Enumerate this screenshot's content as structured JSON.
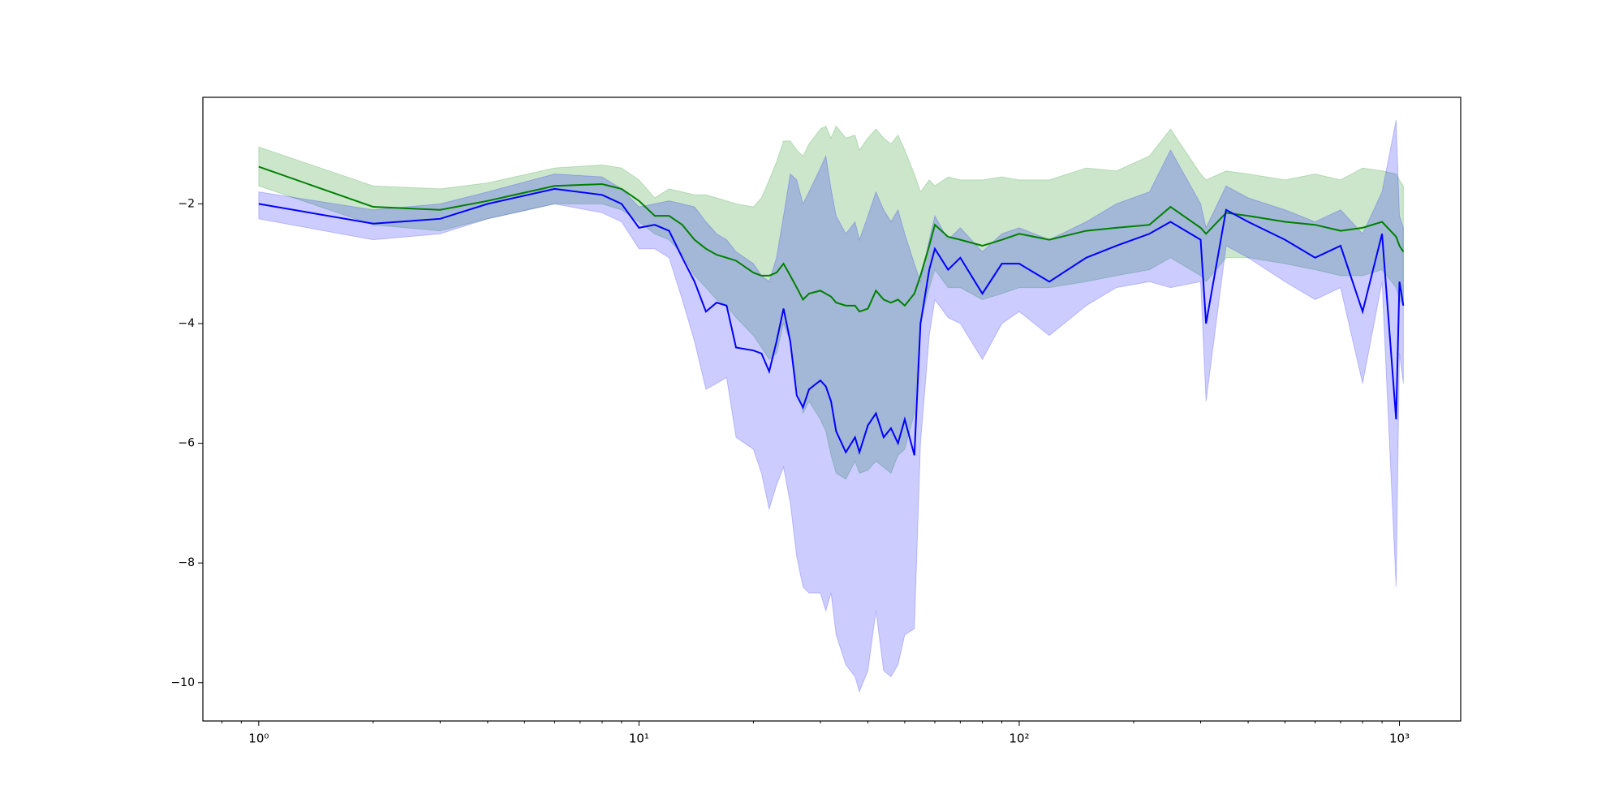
{
  "chart_data": {
    "type": "line",
    "log_x": true,
    "x": [
      1,
      2,
      3,
      4,
      6,
      8,
      9,
      10,
      11,
      12,
      13,
      14,
      15,
      16,
      17,
      18,
      20,
      21,
      22,
      23,
      24,
      25,
      26,
      27,
      28,
      30,
      31,
      32,
      33,
      35,
      37,
      38,
      40,
      42,
      44,
      46,
      48,
      50,
      53,
      55,
      58,
      60,
      65,
      70,
      80,
      90,
      100,
      120,
      150,
      180,
      220,
      250,
      300,
      310,
      350,
      400,
      500,
      600,
      700,
      800,
      900,
      980,
      1000,
      1024
    ],
    "series": [
      {
        "color": "#008000",
        "values": [
          -1.38,
          -2.05,
          -2.1,
          -1.95,
          -1.7,
          -1.67,
          -1.75,
          -1.95,
          -2.2,
          -2.2,
          -2.35,
          -2.6,
          -2.75,
          -2.85,
          -2.9,
          -2.95,
          -3.15,
          -3.2,
          -3.2,
          -3.15,
          -3.0,
          -3.2,
          -3.4,
          -3.6,
          -3.5,
          -3.45,
          -3.5,
          -3.55,
          -3.65,
          -3.7,
          -3.7,
          -3.8,
          -3.75,
          -3.45,
          -3.6,
          -3.65,
          -3.6,
          -3.7,
          -3.5,
          -3.2,
          -2.7,
          -2.35,
          -2.55,
          -2.6,
          -2.7,
          -2.6,
          -2.5,
          -2.6,
          -2.45,
          -2.4,
          -2.35,
          -2.05,
          -2.4,
          -2.5,
          -2.15,
          -2.2,
          -2.3,
          -2.35,
          -2.45,
          -2.4,
          -2.3,
          -2.55,
          -2.7,
          -2.8
        ],
        "upper": [
          -1.05,
          -1.7,
          -1.75,
          -1.65,
          -1.4,
          -1.35,
          -1.4,
          -1.6,
          -1.9,
          -1.75,
          -1.8,
          -1.85,
          -1.85,
          -1.9,
          -1.95,
          -2.0,
          -2.05,
          -1.9,
          -1.6,
          -1.3,
          -0.95,
          -0.95,
          -1.1,
          -1.2,
          -1.0,
          -0.75,
          -0.7,
          -0.9,
          -0.7,
          -0.9,
          -0.85,
          -1.1,
          -0.9,
          -0.75,
          -0.9,
          -1.0,
          -0.85,
          -1.1,
          -1.5,
          -1.8,
          -1.6,
          -1.7,
          -1.55,
          -1.6,
          -1.6,
          -1.55,
          -1.6,
          -1.6,
          -1.4,
          -1.45,
          -1.2,
          -0.75,
          -1.5,
          -1.6,
          -1.45,
          -1.5,
          -1.6,
          -1.5,
          -1.6,
          -1.4,
          -1.45,
          -1.5,
          -1.6,
          -1.7
        ],
        "lower": [
          -1.7,
          -2.35,
          -2.45,
          -2.25,
          -2.0,
          -2.0,
          -2.1,
          -2.3,
          -2.5,
          -2.6,
          -2.85,
          -3.2,
          -3.4,
          -3.6,
          -3.7,
          -3.9,
          -4.2,
          -4.4,
          -4.6,
          -4.5,
          -4.0,
          -4.3,
          -5.0,
          -5.5,
          -5.3,
          -5.6,
          -5.8,
          -6.2,
          -6.5,
          -6.6,
          -6.3,
          -6.5,
          -6.45,
          -6.3,
          -6.4,
          -6.5,
          -6.2,
          -6.1,
          -5.5,
          -4.0,
          -3.4,
          -3.1,
          -3.4,
          -3.4,
          -3.6,
          -3.5,
          -3.4,
          -3.4,
          -3.3,
          -3.2,
          -3.1,
          -2.9,
          -3.2,
          -3.3,
          -2.9,
          -2.9,
          -3.0,
          -3.1,
          -3.2,
          -3.2,
          -3.1,
          -3.4,
          -3.6,
          -3.7
        ]
      },
      {
        "color": "#0000ff",
        "values": [
          -2.0,
          -2.33,
          -2.25,
          -2.0,
          -1.75,
          -1.85,
          -2.0,
          -2.4,
          -2.35,
          -2.45,
          -2.9,
          -3.3,
          -3.8,
          -3.65,
          -3.7,
          -4.4,
          -4.45,
          -4.5,
          -4.8,
          -4.3,
          -3.75,
          -4.3,
          -5.2,
          -5.4,
          -5.1,
          -4.95,
          -5.05,
          -5.3,
          -5.8,
          -6.15,
          -5.9,
          -6.15,
          -5.7,
          -5.5,
          -5.9,
          -5.75,
          -6.0,
          -5.6,
          -6.2,
          -4.0,
          -3.1,
          -2.75,
          -3.1,
          -2.9,
          -3.5,
          -3.0,
          -3.0,
          -3.3,
          -2.9,
          -2.7,
          -2.5,
          -2.3,
          -2.6,
          -4.0,
          -2.1,
          -2.3,
          -2.6,
          -2.9,
          -2.7,
          -3.8,
          -2.5,
          -5.6,
          -3.3,
          -3.7
        ],
        "upper": [
          -1.8,
          -2.1,
          -2.0,
          -1.8,
          -1.5,
          -1.55,
          -1.75,
          -2.05,
          -2.0,
          -1.95,
          -2.0,
          -2.05,
          -2.3,
          -2.5,
          -2.6,
          -2.8,
          -3.0,
          -3.2,
          -3.3,
          -2.9,
          -2.2,
          -1.5,
          -1.6,
          -2.0,
          -1.8,
          -1.4,
          -1.2,
          -1.75,
          -2.2,
          -2.5,
          -2.3,
          -2.6,
          -2.2,
          -1.8,
          -2.1,
          -2.3,
          -2.1,
          -2.5,
          -3.0,
          -3.3,
          -2.6,
          -2.2,
          -2.6,
          -2.4,
          -2.8,
          -2.5,
          -2.4,
          -2.6,
          -2.3,
          -2.0,
          -1.8,
          -1.1,
          -2.0,
          -2.4,
          -1.7,
          -1.9,
          -2.1,
          -2.3,
          -2.1,
          -2.5,
          -1.8,
          -0.6,
          -2.2,
          -2.4
        ],
        "lower": [
          -2.25,
          -2.6,
          -2.5,
          -2.25,
          -2.0,
          -2.15,
          -2.3,
          -2.75,
          -2.75,
          -2.9,
          -3.6,
          -4.3,
          -5.1,
          -5.0,
          -4.9,
          -5.9,
          -6.1,
          -6.5,
          -7.1,
          -6.7,
          -6.4,
          -7.0,
          -7.9,
          -8.4,
          -8.5,
          -8.5,
          -8.8,
          -8.5,
          -9.2,
          -9.7,
          -9.9,
          -10.15,
          -9.8,
          -8.8,
          -9.8,
          -9.9,
          -9.7,
          -9.2,
          -9.1,
          -6.0,
          -4.2,
          -3.6,
          -3.9,
          -4.0,
          -4.6,
          -4.0,
          -3.8,
          -4.2,
          -3.7,
          -3.4,
          -3.3,
          -3.4,
          -3.3,
          -5.3,
          -2.7,
          -2.9,
          -3.3,
          -3.6,
          -3.4,
          -5.0,
          -3.3,
          -8.4,
          -4.5,
          -5.0
        ]
      }
    ],
    "band_opacity": 0.2,
    "xlim": [
      0.713,
      1449
    ],
    "ylim": [
      -10.64,
      -0.22
    ],
    "xticks": [
      {
        "value": 1,
        "label": "10⁰"
      },
      {
        "value": 10,
        "label": "10¹"
      },
      {
        "value": 100,
        "label": "10²"
      },
      {
        "value": 1000,
        "label": "10³"
      }
    ],
    "xminorticks": [
      0.8,
      0.9,
      2,
      3,
      4,
      5,
      6,
      7,
      8,
      9,
      20,
      30,
      40,
      50,
      60,
      70,
      80,
      90,
      200,
      300,
      400,
      500,
      600,
      700,
      800,
      900
    ],
    "yticks": [
      {
        "value": -10,
        "label": "−10"
      },
      {
        "value": -8,
        "label": "−8"
      },
      {
        "value": -6,
        "label": "−6"
      },
      {
        "value": -4,
        "label": "−4"
      },
      {
        "value": -2,
        "label": "−2"
      }
    ]
  }
}
